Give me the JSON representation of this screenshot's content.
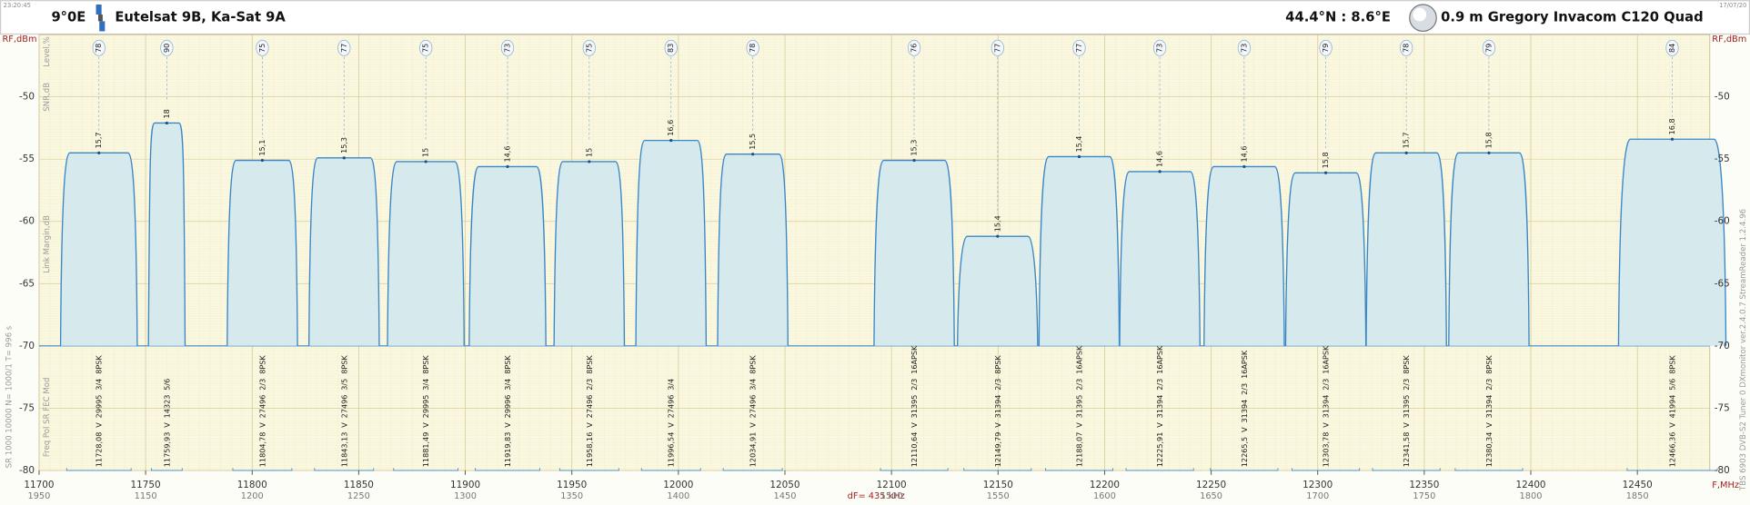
{
  "header": {
    "time": "23:20:45",
    "date": "17/07/20",
    "position": "9°0E",
    "satellite": "Eutelsat 9B, Ka-Sat 9A",
    "location": "44.4°N : 8.6°E",
    "dish": "0.9 m Gregory  Invacom C120 Quad"
  },
  "chart_data": {
    "type": "spectrum",
    "y_label": "RF,dBm",
    "x_label": "F,MHz",
    "note": "dF= 435 kHz",
    "row_labels": [
      "Level,%",
      "SNR,dB",
      "Link Margin,dB"
    ],
    "column_labels": "Freq  Pol  SR  FEC  Mod",
    "settings": "SR  1000  10000  N= 1000/1  T= 996 s",
    "device": "TBS 6903 DVB-S2 Tuner 0   DXmonitor  ver.2.4.0.7  StreamReader 1.2.4.96",
    "xlim": [
      11700,
      12484
    ],
    "ylim": [
      -80,
      -45
    ],
    "xticks": [
      11700,
      11750,
      11800,
      11850,
      11900,
      11950,
      12000,
      12050,
      12100,
      12150,
      12200,
      12250,
      12300,
      12350,
      12400,
      12450
    ],
    "if_ticks": [
      1950,
      1150,
      1200,
      1250,
      1300,
      1350,
      1400,
      1450,
      1500,
      1550,
      1600,
      1650,
      1700,
      1750,
      1800,
      1850
    ],
    "yticks": [
      -80,
      -75,
      -70,
      -65,
      -60,
      -55,
      -50
    ],
    "grid": true,
    "noise_floor": -70,
    "color": "#3a87c8",
    "fill": "#d6e9ec",
    "carriers": [
      {
        "freq": 11728.08,
        "freq_label": "11728,08",
        "pol": "V",
        "sr": 29995,
        "fec": "3/4",
        "mod": "8PSK",
        "level": 78,
        "snr": 15.7,
        "snr_label": "15,7",
        "peak": -54.5
      },
      {
        "freq": 11759.93,
        "freq_label": "11759,93",
        "pol": "V",
        "sr": 14323,
        "fec": "5/6",
        "mod": null,
        "level": 90,
        "snr": 18,
        "peak": -52.1
      },
      {
        "freq": 11804.78,
        "freq_label": "11804,78",
        "pol": "V",
        "sr": 27496,
        "fec": "2/3",
        "mod": "8PSK",
        "level": 75,
        "snr": 15.1,
        "snr_label": "15,1",
        "peak": -55.1
      },
      {
        "freq": 11843.13,
        "freq_label": "11843,13",
        "pol": "V",
        "sr": 27496,
        "fec": "3/5",
        "mod": "8PSK",
        "level": 77,
        "snr": 15.3,
        "snr_label": "15,3",
        "peak": -54.9
      },
      {
        "freq": 11881.49,
        "freq_label": "11881,49",
        "pol": "V",
        "sr": 29995,
        "fec": "3/4",
        "mod": "8PSK",
        "level": 75,
        "snr": 15,
        "peak": -55.2
      },
      {
        "freq": 11919.83,
        "freq_label": "11919,83",
        "pol": "V",
        "sr": 29996,
        "fec": "3/4",
        "mod": "8PSK",
        "level": 73,
        "snr": 14.6,
        "snr_label": "14,6",
        "peak": -55.6
      },
      {
        "freq": 11958.16,
        "freq_label": "11958,16",
        "pol": "V",
        "sr": 27496,
        "fec": "2/3",
        "mod": "8PSK",
        "level": 75,
        "snr": 15,
        "peak": -55.2
      },
      {
        "freq": 11996.54,
        "freq_label": "11996,54",
        "pol": "V",
        "sr": 27496,
        "fec": "3/4",
        "mod": null,
        "level": 83,
        "snr": 16.6,
        "snr_label": "16,6",
        "peak": -53.5
      },
      {
        "freq": 12034.91,
        "freq_label": "12034,91",
        "pol": "V",
        "sr": 27496,
        "fec": "3/4",
        "mod": "8PSK",
        "level": 78,
        "snr": 15.5,
        "snr_label": "15,5",
        "peak": -54.6
      },
      {
        "freq": 12110.64,
        "freq_label": "12110,64",
        "pol": "V",
        "sr": 31395,
        "fec": "2/3",
        "mod": "16APSK",
        "level": 76,
        "snr": 15.3,
        "snr_label": "15,3",
        "peak": -55.1
      },
      {
        "freq": 12149.79,
        "freq_label": "12149,79",
        "pol": "V",
        "sr": 31394,
        "fec": "2/3",
        "mod": "8PSK",
        "level": 77,
        "snr": 15.4,
        "snr_label": "15,4",
        "peak": -61.2
      },
      {
        "freq": 12188.07,
        "freq_label": "12188,07",
        "pol": "V",
        "sr": 31395,
        "fec": "2/3",
        "mod": "16APSK",
        "level": 77,
        "snr": 15.4,
        "snr_label": "15,4",
        "peak": -54.8
      },
      {
        "freq": 12225.91,
        "freq_label": "12225,91",
        "pol": "V",
        "sr": 31394,
        "fec": "2/3",
        "mod": "16APSK",
        "level": 73,
        "snr": 14.6,
        "snr_label": "14,6",
        "peak": -56.0
      },
      {
        "freq": 12265.5,
        "freq_label": "12265,5",
        "pol": "V",
        "sr": 31394,
        "fec": "2/3",
        "mod": "16APSK",
        "level": 73,
        "snr": 14.6,
        "snr_label": "14,6",
        "peak": -55.6
      },
      {
        "freq": 12303.78,
        "freq_label": "12303,78",
        "pol": "V",
        "sr": 31394,
        "fec": "2/3",
        "mod": "16APSK",
        "level": 79,
        "snr": 15.8,
        "snr_label": "15,8",
        "peak": -56.1
      },
      {
        "freq": 12341.58,
        "freq_label": "12341,58",
        "pol": "V",
        "sr": 31395,
        "fec": "2/3",
        "mod": "8PSK",
        "level": 78,
        "snr": 15.7,
        "snr_label": "15,7",
        "peak": -54.5
      },
      {
        "freq": 12380.34,
        "freq_label": "12380,34",
        "pol": "V",
        "sr": 31394,
        "fec": "2/3",
        "mod": "8PSK",
        "level": 79,
        "snr": 15.8,
        "snr_label": "15,8",
        "peak": -54.5
      },
      {
        "freq": 12466.36,
        "freq_label": "12466,36",
        "pol": "V",
        "sr": 41994,
        "fec": "5/6",
        "mod": "8PSK",
        "level": 84,
        "snr": 16.8,
        "snr_label": "16,8",
        "peak": -53.4
      }
    ]
  }
}
